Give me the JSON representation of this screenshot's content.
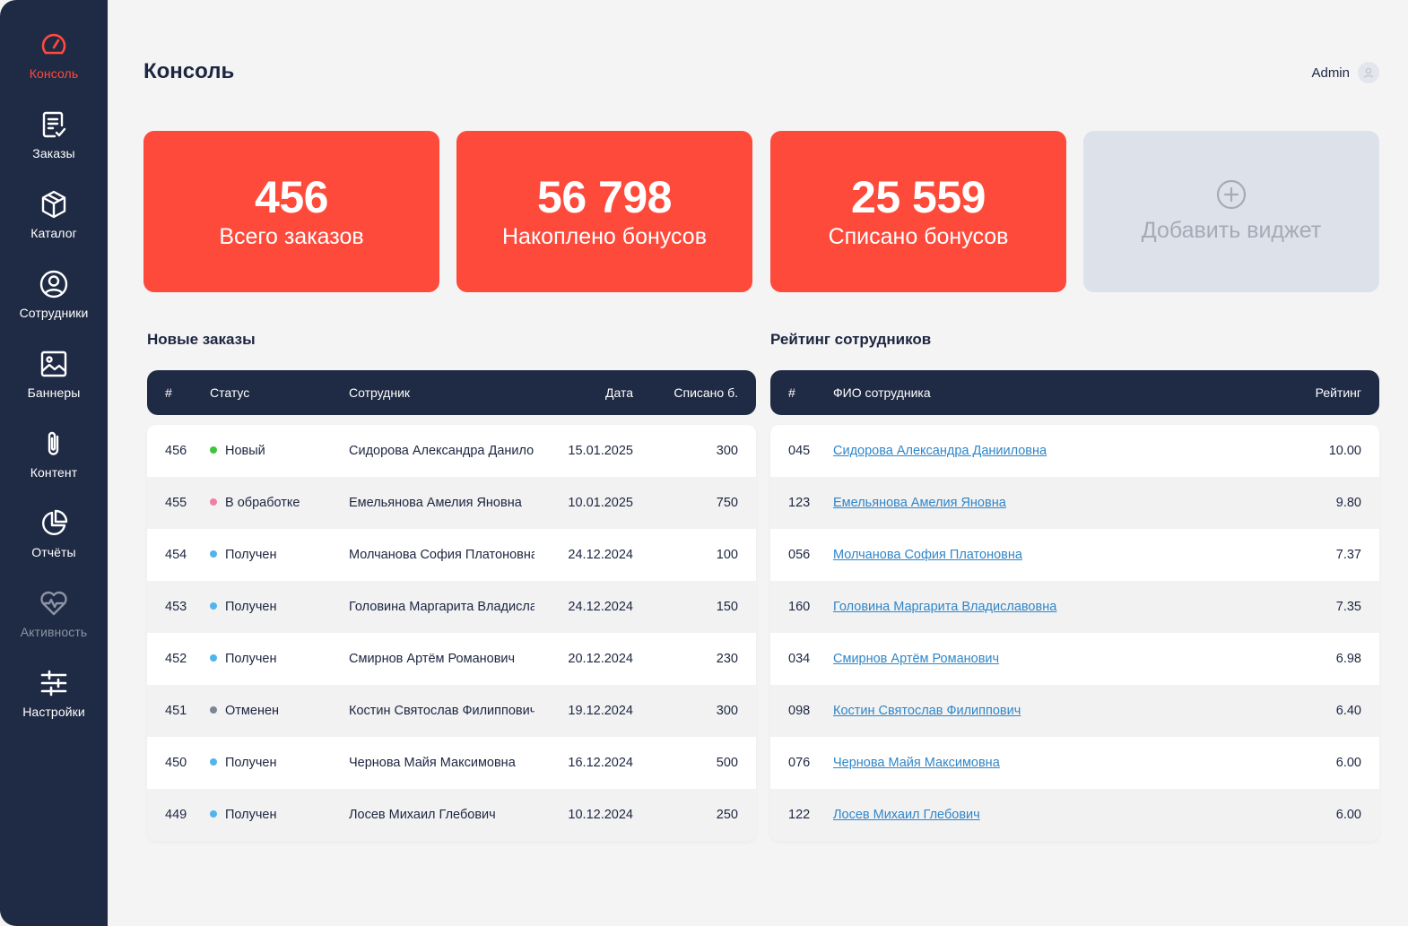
{
  "sidebar": {
    "items": [
      {
        "label": "Консоль",
        "icon": "speedometer-icon"
      },
      {
        "label": "Заказы",
        "icon": "order-list-icon"
      },
      {
        "label": "Каталог",
        "icon": "box-icon"
      },
      {
        "label": "Сотрудники",
        "icon": "user-circle-icon"
      },
      {
        "label": "Баннеры",
        "icon": "image-icon"
      },
      {
        "label": "Контент",
        "icon": "paperclip-icon"
      },
      {
        "label": "Отчёты",
        "icon": "pie-chart-icon"
      },
      {
        "label": "Активность",
        "icon": "heart-pulse-icon"
      },
      {
        "label": "Настройки",
        "icon": "sliders-icon"
      }
    ]
  },
  "header": {
    "title": "Консоль",
    "user_name": "Admin"
  },
  "widgets": [
    {
      "value": "456",
      "caption": "Всего заказов"
    },
    {
      "value": "56 798",
      "caption": "Накоплено бонусов"
    },
    {
      "value": "25 559",
      "caption": "Списано бонусов"
    }
  ],
  "add_widget": {
    "caption": "Добавить виджет"
  },
  "colors": {
    "accent": "#fe4a3b",
    "sidebar": "#1f2a44",
    "link": "#2f86c9",
    "status_new": "#3fc53a",
    "status_processing": "#f07ea7",
    "status_received": "#4fb5ec",
    "status_cancelled": "#7c8495"
  },
  "orders": {
    "title": "Новые заказы",
    "columns": [
      "#",
      "Статус",
      "Сотрудник",
      "Дата",
      "Списано б."
    ],
    "rows": [
      {
        "id": "456",
        "status": "Новый",
        "status_color": "#3fc53a",
        "employee": "Сидорова Александра Даниловна",
        "date": "15.01.2025",
        "spent": "300"
      },
      {
        "id": "455",
        "status": "В обработке",
        "status_color": "#f07ea7",
        "employee": "Емельянова Амелия Яновна",
        "date": "10.01.2025",
        "spent": "750"
      },
      {
        "id": "454",
        "status": "Получен",
        "status_color": "#4fb5ec",
        "employee": "Молчанова София Платоновна",
        "date": "24.12.2024",
        "spent": "100"
      },
      {
        "id": "453",
        "status": "Получен",
        "status_color": "#4fb5ec",
        "employee": "Головина Маргарита Владиславовна",
        "date": "24.12.2024",
        "spent": "150"
      },
      {
        "id": "452",
        "status": "Получен",
        "status_color": "#4fb5ec",
        "employee": "Смирнов Артём Романович",
        "date": "20.12.2024",
        "spent": "230"
      },
      {
        "id": "451",
        "status": "Отменен",
        "status_color": "#7c8495",
        "employee": "Костин Святослав Филиппович",
        "date": "19.12.2024",
        "spent": "300"
      },
      {
        "id": "450",
        "status": "Получен",
        "status_color": "#4fb5ec",
        "employee": "Чернова Майя Максимовна",
        "date": "16.12.2024",
        "spent": "500"
      },
      {
        "id": "449",
        "status": "Получен",
        "status_color": "#4fb5ec",
        "employee": "Лосев Михаил Глебович",
        "date": "10.12.2024",
        "spent": "250"
      }
    ]
  },
  "rating": {
    "title": "Рейтинг сотрудников",
    "columns": [
      "#",
      "ФИО сотрудника",
      "Рейтинг"
    ],
    "rows": [
      {
        "id": "045",
        "name": "Сидорова Александра Данииловна",
        "score": "10.00"
      },
      {
        "id": "123",
        "name": "Емельянова Амелия Яновна",
        "score": "9.80"
      },
      {
        "id": "056",
        "name": "Молчанова София Платоновна",
        "score": "7.37"
      },
      {
        "id": "160",
        "name": "Головина Маргарита Владиславовна",
        "score": "7.35"
      },
      {
        "id": "034",
        "name": "Смирнов Артём Романович",
        "score": "6.98"
      },
      {
        "id": "098",
        "name": "Костин Святослав Филиппович",
        "score": "6.40"
      },
      {
        "id": "076",
        "name": "Чернова Майя Максимовна",
        "score": "6.00"
      },
      {
        "id": "122",
        "name": "Лосев Михаил Глебович",
        "score": "6.00"
      }
    ]
  }
}
